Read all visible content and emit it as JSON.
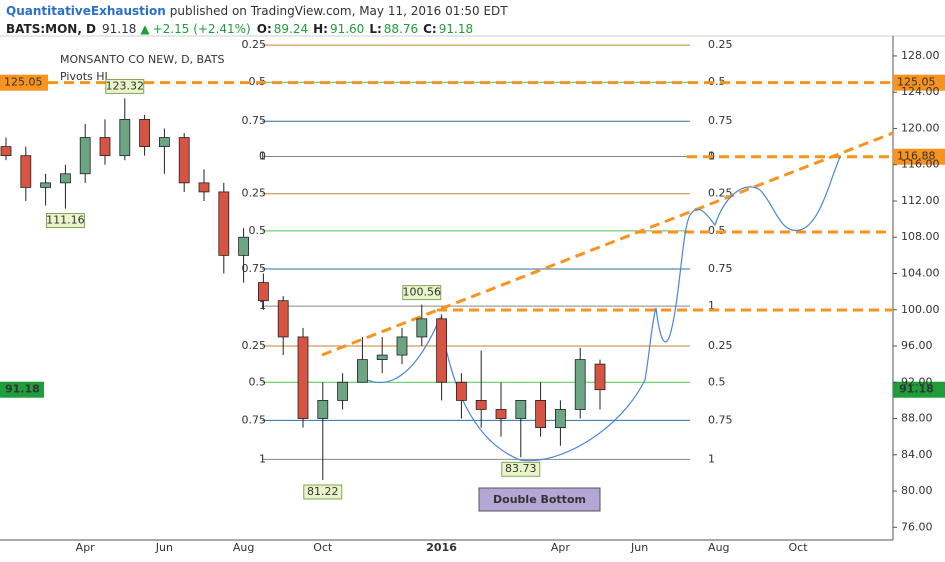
{
  "header": {
    "author": "QuantitativeExhaustion",
    "published": "published on TradingView.com, May 11, 2016 01:50 EDT",
    "symbol": "BATS:MON, D",
    "price": "91.18",
    "arrow": "▲",
    "change": "+2.15 (+2.41%)",
    "ohlc": [
      {
        "key": "O:",
        "value": "89.24"
      },
      {
        "key": "H:",
        "value": "91.60"
      },
      {
        "key": "L:",
        "value": "88.76"
      },
      {
        "key": "C:",
        "value": "91.18"
      }
    ]
  },
  "chart_data": {
    "type": "candlestick",
    "title": "MONSANTO CO NEW, D, BATS",
    "indicator": "Pivots HL",
    "annotation": "Double Bottom",
    "categories": [
      null,
      null,
      null,
      null,
      "Apr",
      null,
      null,
      null,
      "Jun",
      null,
      null,
      null,
      "Aug",
      null,
      null,
      null,
      "Oct",
      null,
      null,
      null,
      null,
      null,
      "2016",
      null,
      null,
      null,
      null,
      null,
      "Apr",
      null,
      null,
      null,
      "Jun",
      null,
      null,
      null,
      "Aug",
      null,
      null,
      null,
      "Oct",
      null,
      null,
      null,
      null
    ],
    "open": [
      118,
      117,
      113.5,
      114,
      115,
      119,
      117,
      121,
      118,
      119,
      114,
      113,
      106,
      103,
      101,
      97,
      88,
      90,
      92,
      94.5,
      95,
      97,
      99,
      92,
      90,
      89,
      88,
      90,
      87,
      89,
      94,
      null,
      null,
      null,
      null,
      null,
      null,
      null,
      null,
      null,
      null,
      null,
      null,
      null,
      null
    ],
    "high": [
      119,
      118,
      115,
      116,
      120.5,
      121,
      123.32,
      121.5,
      120,
      119.5,
      115.5,
      114,
      109,
      104,
      101.5,
      98,
      92,
      93,
      97,
      97,
      98,
      100.56,
      99.5,
      93,
      95.5,
      92,
      90,
      92,
      90,
      95.8,
      94.5,
      null,
      null,
      null,
      null,
      null,
      null,
      null,
      null,
      null,
      null,
      null,
      null,
      null,
      null
    ],
    "low": [
      116.5,
      112,
      111.5,
      111.16,
      114,
      116,
      116.5,
      117,
      115,
      113,
      112,
      104,
      103,
      100,
      95,
      87,
      81.22,
      89,
      92,
      93,
      94,
      96,
      90,
      88,
      87,
      86,
      83.73,
      86,
      85,
      88,
      89,
      null,
      null,
      null,
      null,
      null,
      null,
      null,
      null,
      null,
      null,
      null,
      null,
      null,
      null
    ],
    "close": [
      117,
      113.5,
      114,
      115,
      119,
      117,
      121,
      118,
      119,
      114,
      113,
      106,
      108,
      101,
      97,
      88,
      90,
      92,
      94.5,
      95,
      97,
      99,
      92,
      90,
      89,
      88,
      90,
      87,
      89,
      94.5,
      91.18,
      null,
      null,
      null,
      null,
      null,
      null,
      null,
      null,
      null,
      null,
      null,
      null,
      null,
      null
    ],
    "high_labels": [
      null,
      null,
      null,
      null,
      null,
      null,
      "123.32",
      null,
      null,
      null,
      null,
      null,
      null,
      null,
      null,
      null,
      null,
      null,
      null,
      null,
      null,
      "100.56",
      null,
      null,
      null,
      null,
      null,
      null,
      null,
      null,
      null,
      null,
      null,
      null,
      null,
      null,
      null,
      null,
      null,
      null,
      null,
      null,
      null,
      null,
      null
    ],
    "low_labels": [
      null,
      null,
      null,
      "111.16",
      null,
      null,
      null,
      null,
      null,
      null,
      null,
      null,
      null,
      null,
      null,
      null,
      "81.22",
      null,
      null,
      null,
      null,
      null,
      null,
      null,
      null,
      null,
      "83.73",
      null,
      null,
      null,
      null,
      null,
      null,
      null,
      null,
      null,
      null,
      null,
      null,
      null,
      null,
      null,
      null,
      null,
      null
    ],
    "up_color": "#6ba583",
    "down_color": "#d75442",
    "ylim": [
      74.6,
      130.2
    ],
    "yticks": [
      {
        "value": 76,
        "label": "76.00"
      },
      {
        "value": 80,
        "label": "80.00"
      },
      {
        "value": 84,
        "label": "84.00"
      },
      {
        "value": 88,
        "label": "88.00"
      },
      {
        "value": 92,
        "label": "92.00"
      },
      {
        "value": 96,
        "label": "96.00"
      },
      {
        "value": 100,
        "label": "100.00"
      },
      {
        "value": 104,
        "label": "104.00"
      },
      {
        "value": 108,
        "label": "108.00"
      },
      {
        "value": 112,
        "label": "112.00"
      },
      {
        "value": 116,
        "label": "116.00"
      },
      {
        "value": 120,
        "label": "120.00"
      },
      {
        "value": 124,
        "label": "124.00"
      },
      {
        "value": 128,
        "label": "128.00"
      }
    ],
    "price_lines": [
      {
        "value": 125.05,
        "label": "125.05",
        "color": "#f7931e"
      },
      {
        "value": 116.88,
        "label": "116.88",
        "color": "#f7931e"
      }
    ],
    "last_price": {
      "value": 91.18,
      "label": "91.18",
      "color": "#1e9e3a"
    },
    "fib_levels": [
      {
        "value": 129.2,
        "label": "0.25",
        "color": "#c0852e"
      },
      {
        "value": 125.1,
        "label": "0.5",
        "color": "#4cc94c"
      },
      {
        "value": 120.8,
        "label": "0.75",
        "color": "#2e6f9e"
      },
      {
        "value": 116.9,
        "label": "1",
        "color": "#888888"
      },
      {
        "value": 116.9,
        "label": "0",
        "color": "#888888"
      },
      {
        "value": 112.8,
        "label": "0.25",
        "color": "#c0852e"
      },
      {
        "value": 108.7,
        "label": "0.5",
        "color": "#4cc94c"
      },
      {
        "value": 104.5,
        "label": "0.75",
        "color": "#2e6f9e"
      },
      {
        "value": 100.4,
        "label": "1",
        "color": "#888888"
      },
      {
        "value": 96.0,
        "label": "0.25",
        "color": "#c0852e"
      },
      {
        "value": 92.0,
        "label": "0.5",
        "color": "#4cc94c"
      },
      {
        "value": 87.8,
        "label": "0.75",
        "color": "#2e6f9e"
      },
      {
        "value": 83.5,
        "label": "1",
        "color": "#888888"
      }
    ]
  }
}
